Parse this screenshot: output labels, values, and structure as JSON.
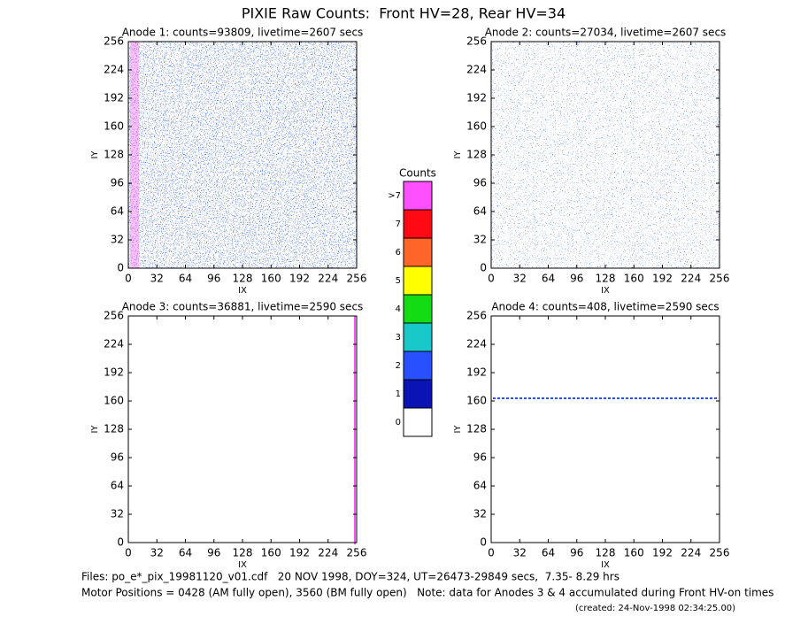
{
  "chart_data": {
    "type": "heatmap",
    "title": "PIXIE Raw Counts:  Front HV=28, Rear HV=34",
    "panels": [
      {
        "title": "Anode 1: counts=93809, livetime=2607 secs",
        "xlabel": "IX",
        "ylabel": "IY",
        "xlim": [
          0,
          256
        ],
        "ylim": [
          0,
          256
        ],
        "xticks": [
          0,
          32,
          64,
          96,
          128,
          160,
          192,
          224,
          256
        ],
        "yticks": [
          0,
          32,
          64,
          96,
          128,
          160,
          192,
          224,
          256
        ]
      },
      {
        "title": "Anode 2: counts=27034, livetime=2607 secs",
        "xlabel": "IX",
        "ylabel": "IY",
        "xlim": [
          0,
          256
        ],
        "ylim": [
          0,
          256
        ],
        "xticks": [
          0,
          32,
          64,
          96,
          128,
          160,
          192,
          224,
          256
        ],
        "yticks": [
          0,
          32,
          64,
          96,
          128,
          160,
          192,
          224,
          256
        ]
      },
      {
        "title": "Anode 3: counts=36881, livetime=2590 secs",
        "xlabel": "IX",
        "ylabel": "IY",
        "xlim": [
          0,
          256
        ],
        "ylim": [
          0,
          256
        ],
        "xticks": [
          0,
          32,
          64,
          96,
          128,
          160,
          192,
          224,
          256
        ],
        "yticks": [
          0,
          32,
          64,
          96,
          128,
          160,
          192,
          224,
          256
        ]
      },
      {
        "title": "Anode 4: counts=408, livetime=2590 secs",
        "xlabel": "IX",
        "ylabel": "IY",
        "xlim": [
          0,
          256
        ],
        "ylim": [
          0,
          256
        ],
        "xticks": [
          0,
          32,
          64,
          96,
          128,
          160,
          192,
          224,
          256
        ],
        "yticks": [
          0,
          32,
          64,
          96,
          128,
          160,
          192,
          224,
          256
        ]
      }
    ],
    "colorbar": {
      "title": "Counts",
      "labels": [
        "0",
        "1",
        "2",
        "3",
        "4",
        "5",
        "6",
        "7",
        ">7"
      ],
      "colors": [
        "#ffffff",
        "#0a14b4",
        "#2850ff",
        "#19c8c8",
        "#14dc14",
        "#ffff00",
        "#ff6428",
        "#ff0a14",
        "#ff50ff"
      ]
    },
    "footer": [
      "Files: po_e*_pix_19981120_v01.cdf   20 NOV 1998, DOY=324, UT=26473-29849 secs,  7.35- 8.29 hrs",
      "Motor Positions = 0428 (AM fully open), 3560 (BM fully open)   Note: data for Anodes 3 & 4 accumulated during Front HV-on times"
    ],
    "created": "(created: 24-Nov-1998 02:34:25.00)"
  }
}
